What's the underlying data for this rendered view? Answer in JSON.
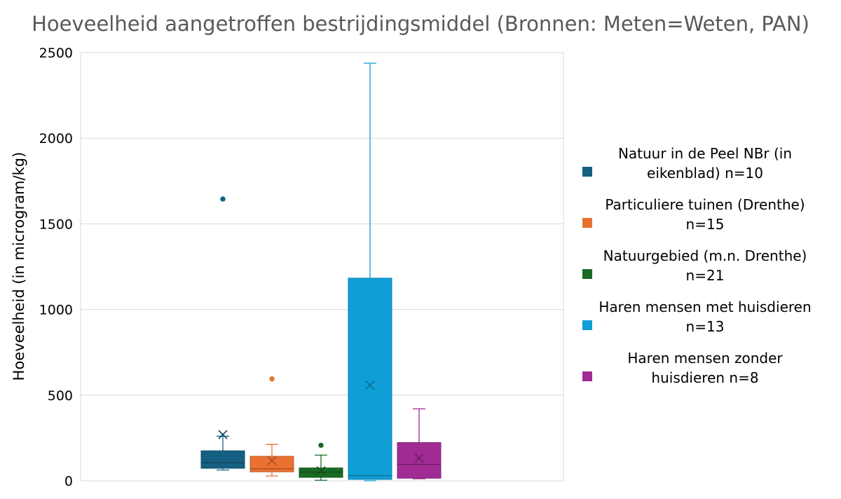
{
  "chart_data": {
    "type": "box",
    "title": "Hoeveelheid aangetroffen bestrijdingsmiddel (Bronnen: Meten=Weten, PAN)",
    "ylabel": "Hoeveelheid (in microgram/kg)",
    "xlabel": "",
    "ylim": [
      0,
      2500
    ],
    "yticks": [
      0,
      500,
      1000,
      1500,
      2000,
      2500
    ],
    "grid": true,
    "legend_position": "right",
    "series": [
      {
        "name": "Natuur in de Peel NBr (in eikenblad) n=10",
        "legend_lines": [
          "Natuur in de Peel NBr (in",
          "eikenblad) n=10"
        ],
        "color": "#156082",
        "min": 63,
        "q1": 73,
        "median": 105,
        "q3": 175,
        "max": 260,
        "mean": 270,
        "outliers": [
          1645
        ]
      },
      {
        "name": "Particuliere tuinen (Drenthe) n=15",
        "legend_lines": [
          "Particuliere tuinen (Drenthe)",
          "n=15"
        ],
        "color": "#E97132",
        "min": 28,
        "q1": 52,
        "median": 70,
        "q3": 143,
        "max": 212,
        "mean": 118,
        "outliers": [
          595
        ]
      },
      {
        "name": "Natuurgebied (m.n. Drenthe) n=21",
        "legend_lines": [
          "Natuurgebied (m.n. Drenthe)",
          "n=21"
        ],
        "color": "#196B24",
        "min": 3,
        "q1": 20,
        "median": 50,
        "q3": 75,
        "max": 150,
        "mean": 58,
        "outliers": [
          207
        ]
      },
      {
        "name": "Haren mensen met huisdieren n=13",
        "legend_lines": [
          "Haren mensen met huisdieren",
          "n=13"
        ],
        "color": "#0F9ED5",
        "min": 0,
        "q1": 8,
        "median": 30,
        "q3": 1183,
        "max": 2438,
        "mean": 558,
        "outliers": []
      },
      {
        "name": "Haren mensen zonder huisdieren n=8",
        "legend_lines": [
          "Haren mensen zonder",
          "huisdieren n=8"
        ],
        "color": "#A02B93",
        "min": 12,
        "q1": 15,
        "median": 95,
        "q3": 223,
        "max": 420,
        "mean": 132,
        "outliers": []
      }
    ]
  }
}
